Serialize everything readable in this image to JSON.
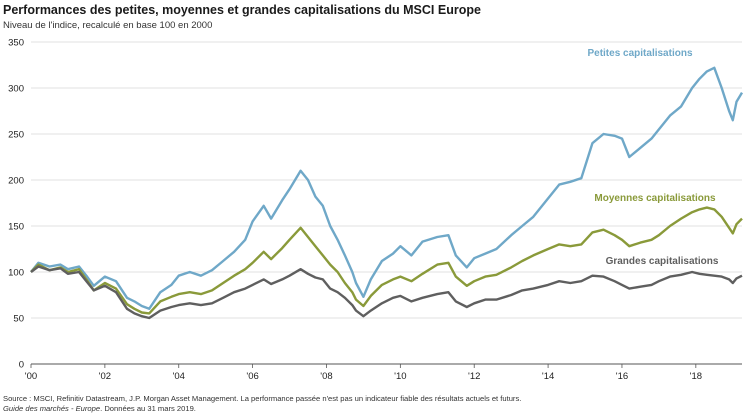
{
  "header": {
    "title": "Performances des petites, moyennes et grandes capitalisations du MSCI Europe",
    "subtitle": "Niveau de l'indice, recalculé en base 100 en 2000"
  },
  "footer": {
    "source": "Source : MSCI, Refinitiv Datastream, J.P. Morgan Asset Management. La performance passée n'est pas un indicateur fiable des résultats actuels et futurs.",
    "guide": "Guide des marchés - Europe",
    "date_note": ". Données au 31 mars 2019."
  },
  "chart_data": {
    "type": "line",
    "title": "Performances des petites, moyennes et grandes capitalisations du MSCI Europe",
    "ylabel": "Niveau de l'indice, recalculé en base 100 en 2000",
    "xlabel": "",
    "ylim": [
      0,
      350
    ],
    "yticks": [
      0,
      50,
      100,
      150,
      200,
      250,
      300,
      350
    ],
    "xlim": [
      2000,
      2019.25
    ],
    "xticks": [
      {
        "value": 2000,
        "label": "'00"
      },
      {
        "value": 2002,
        "label": "'02"
      },
      {
        "value": 2004,
        "label": "'04"
      },
      {
        "value": 2006,
        "label": "'06"
      },
      {
        "value": 2008,
        "label": "'08"
      },
      {
        "value": 2010,
        "label": "'10"
      },
      {
        "value": 2012,
        "label": "'12"
      },
      {
        "value": 2014,
        "label": "'14"
      },
      {
        "value": 2016,
        "label": "'16"
      },
      {
        "value": 2018,
        "label": "'18"
      }
    ],
    "grid": "horizontal",
    "series": [
      {
        "name": "Petites capitalisations",
        "color": "#6fa8c8",
        "points": [
          [
            2000,
            100
          ],
          [
            2000.2,
            110
          ],
          [
            2000.5,
            106
          ],
          [
            2000.8,
            108
          ],
          [
            2001,
            103
          ],
          [
            2001.3,
            106
          ],
          [
            2001.5,
            96
          ],
          [
            2001.7,
            85
          ],
          [
            2002,
            95
          ],
          [
            2002.3,
            90
          ],
          [
            2002.6,
            72
          ],
          [
            2002.8,
            68
          ],
          [
            2003,
            63
          ],
          [
            2003.2,
            60
          ],
          [
            2003.5,
            78
          ],
          [
            2003.8,
            86
          ],
          [
            2004,
            96
          ],
          [
            2004.3,
            100
          ],
          [
            2004.6,
            96
          ],
          [
            2004.9,
            102
          ],
          [
            2005.2,
            112
          ],
          [
            2005.5,
            122
          ],
          [
            2005.8,
            135
          ],
          [
            2006,
            155
          ],
          [
            2006.3,
            172
          ],
          [
            2006.5,
            158
          ],
          [
            2006.8,
            178
          ],
          [
            2007,
            190
          ],
          [
            2007.3,
            210
          ],
          [
            2007.5,
            200
          ],
          [
            2007.7,
            182
          ],
          [
            2007.9,
            172
          ],
          [
            2008.1,
            150
          ],
          [
            2008.3,
            135
          ],
          [
            2008.5,
            118
          ],
          [
            2008.7,
            100
          ],
          [
            2008.8,
            88
          ],
          [
            2009,
            73
          ],
          [
            2009.2,
            92
          ],
          [
            2009.5,
            112
          ],
          [
            2009.8,
            120
          ],
          [
            2010,
            128
          ],
          [
            2010.3,
            118
          ],
          [
            2010.6,
            133
          ],
          [
            2011,
            138
          ],
          [
            2011.3,
            140
          ],
          [
            2011.5,
            118
          ],
          [
            2011.8,
            105
          ],
          [
            2012,
            115
          ],
          [
            2012.3,
            120
          ],
          [
            2012.6,
            125
          ],
          [
            2013,
            140
          ],
          [
            2013.3,
            150
          ],
          [
            2013.6,
            160
          ],
          [
            2014,
            180
          ],
          [
            2014.3,
            195
          ],
          [
            2014.6,
            198
          ],
          [
            2014.9,
            202
          ],
          [
            2015.2,
            240
          ],
          [
            2015.5,
            250
          ],
          [
            2015.8,
            248
          ],
          [
            2016,
            245
          ],
          [
            2016.2,
            225
          ],
          [
            2016.5,
            235
          ],
          [
            2016.8,
            245
          ],
          [
            2017,
            255
          ],
          [
            2017.3,
            270
          ],
          [
            2017.6,
            280
          ],
          [
            2017.9,
            300
          ],
          [
            2018.1,
            310
          ],
          [
            2018.3,
            318
          ],
          [
            2018.5,
            322
          ],
          [
            2018.7,
            300
          ],
          [
            2018.9,
            275
          ],
          [
            2019,
            265
          ],
          [
            2019.1,
            285
          ],
          [
            2019.25,
            295
          ]
        ]
      },
      {
        "name": "Moyennes capitalisations",
        "color": "#8a9a3a",
        "points": [
          [
            2000,
            100
          ],
          [
            2000.2,
            108
          ],
          [
            2000.5,
            102
          ],
          [
            2000.8,
            105
          ],
          [
            2001,
            100
          ],
          [
            2001.3,
            103
          ],
          [
            2001.5,
            92
          ],
          [
            2001.7,
            80
          ],
          [
            2002,
            88
          ],
          [
            2002.3,
            82
          ],
          [
            2002.6,
            65
          ],
          [
            2002.8,
            60
          ],
          [
            2003,
            56
          ],
          [
            2003.2,
            55
          ],
          [
            2003.5,
            68
          ],
          [
            2003.8,
            73
          ],
          [
            2004,
            76
          ],
          [
            2004.3,
            78
          ],
          [
            2004.6,
            76
          ],
          [
            2004.9,
            80
          ],
          [
            2005.2,
            88
          ],
          [
            2005.5,
            96
          ],
          [
            2005.8,
            103
          ],
          [
            2006,
            110
          ],
          [
            2006.3,
            122
          ],
          [
            2006.5,
            114
          ],
          [
            2006.8,
            126
          ],
          [
            2007,
            135
          ],
          [
            2007.3,
            148
          ],
          [
            2007.5,
            138
          ],
          [
            2007.7,
            128
          ],
          [
            2007.9,
            118
          ],
          [
            2008.1,
            108
          ],
          [
            2008.3,
            100
          ],
          [
            2008.5,
            88
          ],
          [
            2008.7,
            78
          ],
          [
            2008.8,
            70
          ],
          [
            2009,
            63
          ],
          [
            2009.2,
            74
          ],
          [
            2009.5,
            86
          ],
          [
            2009.8,
            92
          ],
          [
            2010,
            95
          ],
          [
            2010.3,
            90
          ],
          [
            2010.6,
            98
          ],
          [
            2011,
            108
          ],
          [
            2011.3,
            110
          ],
          [
            2011.5,
            95
          ],
          [
            2011.8,
            85
          ],
          [
            2012,
            90
          ],
          [
            2012.3,
            95
          ],
          [
            2012.6,
            97
          ],
          [
            2013,
            105
          ],
          [
            2013.3,
            112
          ],
          [
            2013.6,
            118
          ],
          [
            2014,
            125
          ],
          [
            2014.3,
            130
          ],
          [
            2014.6,
            128
          ],
          [
            2014.9,
            130
          ],
          [
            2015.2,
            143
          ],
          [
            2015.5,
            146
          ],
          [
            2015.8,
            140
          ],
          [
            2016,
            135
          ],
          [
            2016.2,
            128
          ],
          [
            2016.5,
            132
          ],
          [
            2016.8,
            135
          ],
          [
            2017,
            140
          ],
          [
            2017.3,
            150
          ],
          [
            2017.6,
            158
          ],
          [
            2017.9,
            165
          ],
          [
            2018.1,
            168
          ],
          [
            2018.3,
            170
          ],
          [
            2018.5,
            168
          ],
          [
            2018.7,
            160
          ],
          [
            2018.9,
            148
          ],
          [
            2019,
            142
          ],
          [
            2019.1,
            152
          ],
          [
            2019.25,
            158
          ]
        ]
      },
      {
        "name": "Grandes capitalisations",
        "color": "#5f5f5f",
        "points": [
          [
            2000,
            100
          ],
          [
            2000.2,
            106
          ],
          [
            2000.5,
            102
          ],
          [
            2000.8,
            104
          ],
          [
            2001,
            98
          ],
          [
            2001.3,
            100
          ],
          [
            2001.5,
            90
          ],
          [
            2001.7,
            80
          ],
          [
            2002,
            85
          ],
          [
            2002.3,
            78
          ],
          [
            2002.6,
            60
          ],
          [
            2002.8,
            55
          ],
          [
            2003,
            52
          ],
          [
            2003.2,
            50
          ],
          [
            2003.5,
            58
          ],
          [
            2003.8,
            62
          ],
          [
            2004,
            64
          ],
          [
            2004.3,
            66
          ],
          [
            2004.6,
            64
          ],
          [
            2004.9,
            66
          ],
          [
            2005.2,
            72
          ],
          [
            2005.5,
            78
          ],
          [
            2005.8,
            82
          ],
          [
            2006,
            86
          ],
          [
            2006.3,
            92
          ],
          [
            2006.5,
            87
          ],
          [
            2006.8,
            92
          ],
          [
            2007,
            96
          ],
          [
            2007.3,
            103
          ],
          [
            2007.5,
            98
          ],
          [
            2007.7,
            94
          ],
          [
            2007.9,
            92
          ],
          [
            2008.1,
            82
          ],
          [
            2008.3,
            78
          ],
          [
            2008.5,
            72
          ],
          [
            2008.7,
            64
          ],
          [
            2008.8,
            58
          ],
          [
            2009,
            52
          ],
          [
            2009.2,
            58
          ],
          [
            2009.5,
            66
          ],
          [
            2009.8,
            72
          ],
          [
            2010,
            74
          ],
          [
            2010.3,
            68
          ],
          [
            2010.6,
            72
          ],
          [
            2011,
            76
          ],
          [
            2011.3,
            78
          ],
          [
            2011.5,
            68
          ],
          [
            2011.8,
            62
          ],
          [
            2012,
            66
          ],
          [
            2012.3,
            70
          ],
          [
            2012.6,
            70
          ],
          [
            2013,
            75
          ],
          [
            2013.3,
            80
          ],
          [
            2013.6,
            82
          ],
          [
            2014,
            86
          ],
          [
            2014.3,
            90
          ],
          [
            2014.6,
            88
          ],
          [
            2014.9,
            90
          ],
          [
            2015.2,
            96
          ],
          [
            2015.5,
            95
          ],
          [
            2015.8,
            90
          ],
          [
            2016,
            86
          ],
          [
            2016.2,
            82
          ],
          [
            2016.5,
            84
          ],
          [
            2016.8,
            86
          ],
          [
            2017,
            90
          ],
          [
            2017.3,
            95
          ],
          [
            2017.6,
            97
          ],
          [
            2017.9,
            100
          ],
          [
            2018.1,
            98
          ],
          [
            2018.3,
            97
          ],
          [
            2018.5,
            96
          ],
          [
            2018.7,
            95
          ],
          [
            2018.9,
            92
          ],
          [
            2019,
            88
          ],
          [
            2019.1,
            93
          ],
          [
            2019.25,
            96
          ]
        ]
      }
    ],
    "annotations": [
      {
        "text": "Petites capitalisations",
        "series": "Petites capitalisations"
      },
      {
        "text": "Moyennes capitalisations",
        "series": "Moyennes capitalisations"
      },
      {
        "text": "Grandes capitalisations",
        "series": "Grandes capitalisations"
      }
    ]
  }
}
